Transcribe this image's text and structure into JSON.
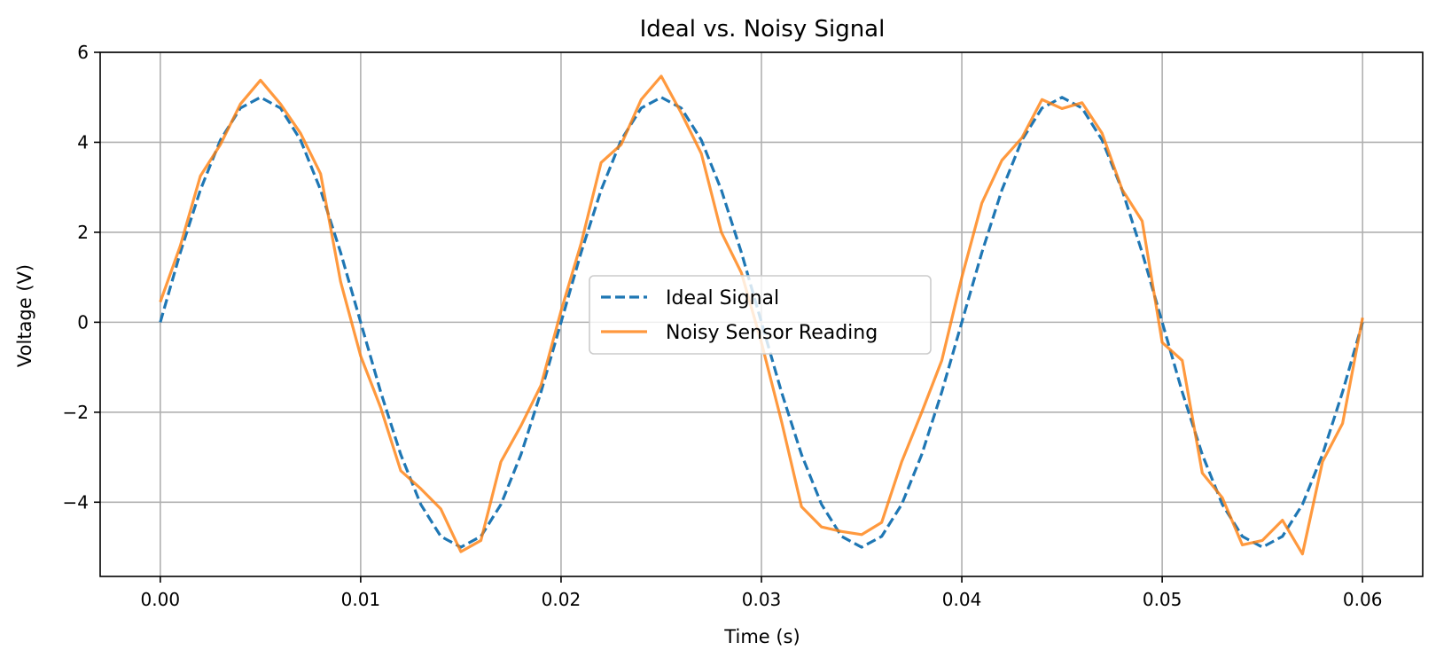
{
  "chart_data": {
    "type": "line",
    "title": "Ideal vs. Noisy Signal",
    "xlabel": "Time (s)",
    "ylabel": "Voltage (V)",
    "xlim": [
      -0.003,
      0.063
    ],
    "ylim": [
      -5.65,
      6
    ],
    "xticks": [
      0.0,
      0.01,
      0.02,
      0.03,
      0.04,
      0.05,
      0.06
    ],
    "xtick_labels": [
      "0.00",
      "0.01",
      "0.02",
      "0.03",
      "0.04",
      "0.05",
      "0.06"
    ],
    "yticks": [
      -4,
      -2,
      0,
      2,
      4,
      6
    ],
    "ytick_labels": [
      "−4",
      "−2",
      "0",
      "2",
      "4",
      "6"
    ],
    "grid": true,
    "legend_position": "center",
    "x": [
      0.0,
      0.001,
      0.002,
      0.003,
      0.004,
      0.005,
      0.006,
      0.007,
      0.008,
      0.009,
      0.01,
      0.011,
      0.012,
      0.013,
      0.014,
      0.015,
      0.016,
      0.017,
      0.018,
      0.019,
      0.02,
      0.021,
      0.022,
      0.023,
      0.024,
      0.025,
      0.026,
      0.027,
      0.028,
      0.029,
      0.03,
      0.031,
      0.032,
      0.033,
      0.034,
      0.035,
      0.036,
      0.037,
      0.038,
      0.039,
      0.04,
      0.041,
      0.042,
      0.043,
      0.044,
      0.045,
      0.046,
      0.047,
      0.048,
      0.049,
      0.05,
      0.051,
      0.052,
      0.053,
      0.054,
      0.055,
      0.056,
      0.057,
      0.058,
      0.059,
      0.06
    ],
    "series": [
      {
        "name": "Ideal Signal",
        "color": "#1f77b4",
        "style": "dashed",
        "values": [
          0.0,
          1.55,
          2.94,
          4.05,
          4.76,
          5.0,
          4.76,
          4.05,
          2.94,
          1.55,
          0.0,
          -1.55,
          -2.94,
          -4.05,
          -4.76,
          -5.0,
          -4.76,
          -4.05,
          -2.94,
          -1.55,
          0.0,
          1.55,
          2.94,
          4.05,
          4.76,
          5.0,
          4.76,
          4.05,
          2.94,
          1.55,
          0.0,
          -1.55,
          -2.94,
          -4.05,
          -4.76,
          -5.0,
          -4.76,
          -4.05,
          -2.94,
          -1.55,
          0.0,
          1.55,
          2.94,
          4.05,
          4.76,
          5.0,
          4.76,
          4.05,
          2.94,
          1.55,
          0.0,
          -1.55,
          -2.94,
          -4.05,
          -4.76,
          -5.0,
          -4.76,
          -4.05,
          -2.94,
          -1.55,
          0.0
        ]
      },
      {
        "name": "Noisy Sensor Reading",
        "color": "#ff7f0e",
        "style": "solid",
        "values": [
          0.45,
          1.7,
          3.25,
          3.95,
          4.85,
          5.38,
          4.85,
          4.2,
          3.3,
          0.9,
          -0.75,
          -1.9,
          -3.3,
          -3.7,
          -4.15,
          -5.1,
          -4.85,
          -3.1,
          -2.3,
          -1.4,
          0.25,
          1.75,
          3.55,
          3.95,
          4.95,
          5.47,
          4.65,
          3.75,
          2.0,
          1.1,
          -0.45,
          -2.2,
          -4.1,
          -4.55,
          -4.65,
          -4.72,
          -4.45,
          -3.1,
          -2.0,
          -0.85,
          1.0,
          2.65,
          3.6,
          4.1,
          4.95,
          4.75,
          4.88,
          4.2,
          2.95,
          2.25,
          -0.45,
          -0.85,
          -3.35,
          -3.9,
          -4.95,
          -4.85,
          -4.4,
          -5.15,
          -3.1,
          -2.25,
          0.1
        ]
      }
    ]
  }
}
